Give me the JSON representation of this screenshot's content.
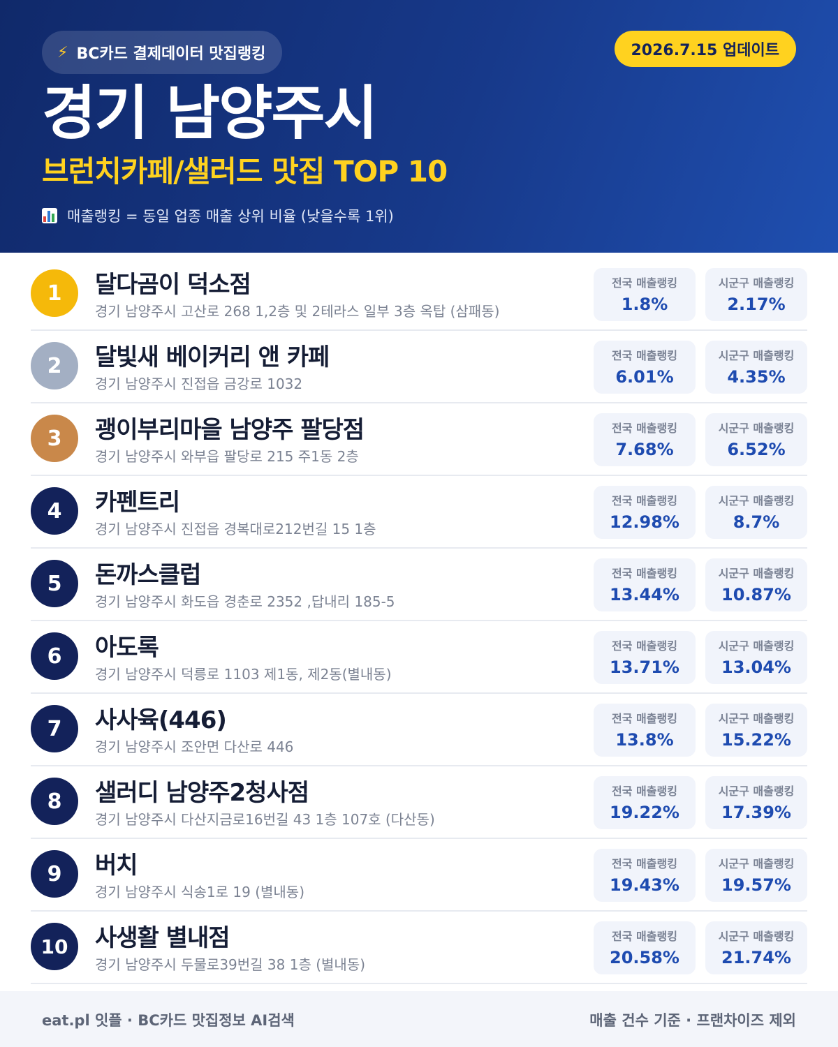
{
  "header": {
    "source_label": "BC카드 결제데이터 맛집랭킹",
    "bolt_icon": "lightning-icon",
    "update_label": "2026.7.15 업데이트",
    "region": "경기 남양주시",
    "category": "브런치카페/샐러드 맛집 TOP 10",
    "legend_icon": "bar-chart-icon",
    "legend": "매출랭킹 = 동일 업종 매출 상위 비율 (낮을수록 1위)"
  },
  "colors": {
    "header_bg": "#17398a",
    "accent_yellow": "#ffd21f",
    "rank_gold": "#f5b90a",
    "rank_silver": "#a3afc3",
    "rank_bronze": "#c9884a",
    "rank_default": "#13225a",
    "value_blue": "#1e4bb0"
  },
  "stat_labels": {
    "national": "전국 매출랭킹",
    "local": "시군구 매출랭킹"
  },
  "restaurants": [
    {
      "rank": "1",
      "name": "달다곰이 덕소점",
      "address": "경기 남양주시 고산로 268 1,2층 및 2테라스 일부 3층 옥탑 (삼패동)",
      "national": "1.8%",
      "local": "2.17%"
    },
    {
      "rank": "2",
      "name": "달빛새 베이커리 앤 카페",
      "address": "경기 남양주시 진접읍 금강로 1032",
      "national": "6.01%",
      "local": "4.35%"
    },
    {
      "rank": "3",
      "name": "괭이부리마을 남양주 팔당점",
      "address": "경기 남양주시 와부읍 팔당로 215 주1동 2층",
      "national": "7.68%",
      "local": "6.52%"
    },
    {
      "rank": "4",
      "name": "카펜트리",
      "address": "경기 남양주시 진접읍 경복대로212번길 15 1층",
      "national": "12.98%",
      "local": "8.7%"
    },
    {
      "rank": "5",
      "name": "돈까스클럽",
      "address": "경기 남양주시 화도읍 경춘로 2352 ,답내리 185-5",
      "national": "13.44%",
      "local": "10.87%"
    },
    {
      "rank": "6",
      "name": "아도록",
      "address": "경기 남양주시 덕릉로 1103 제1동, 제2동(별내동)",
      "national": "13.71%",
      "local": "13.04%"
    },
    {
      "rank": "7",
      "name": "사사육(446)",
      "address": "경기 남양주시 조안면 다산로 446",
      "national": "13.8%",
      "local": "15.22%"
    },
    {
      "rank": "8",
      "name": "샐러디 남양주2청사점",
      "address": "경기 남양주시 다산지금로16번길 43 1층 107호 (다산동)",
      "national": "19.22%",
      "local": "17.39%"
    },
    {
      "rank": "9",
      "name": "버치",
      "address": "경기 남양주시 식송1로 19 (별내동)",
      "national": "19.43%",
      "local": "19.57%"
    },
    {
      "rank": "10",
      "name": "사생활 별내점",
      "address": "경기 남양주시 두물로39번길 38 1층 (별내동)",
      "national": "20.58%",
      "local": "21.74%"
    }
  ],
  "footer": {
    "left": "eat.pl 잇플 · BC카드 맛집정보 AI검색",
    "right": "매출 건수 기준 · 프랜차이즈 제외"
  }
}
